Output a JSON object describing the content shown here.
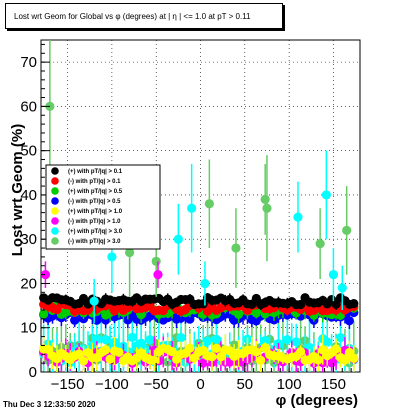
{
  "chart_data": {
    "type": "scatter",
    "title": "Lost wrt Geom for Global vs φ (degrees) at | η | <= 1.0 at pT > 0.11",
    "xlabel": "φ (degrees)",
    "ylabel": "Lost wrt Geom (%)",
    "xlim": [
      -180,
      180
    ],
    "ylim": [
      0,
      75
    ],
    "x_ticks": [
      -150,
      -100,
      -50,
      0,
      50,
      100,
      150
    ],
    "y_ticks": [
      0,
      10,
      20,
      30,
      40,
      50,
      60,
      70
    ],
    "grid": true,
    "legend_position": "middle-left",
    "series": [
      {
        "name": "(+) with pT/|q| > 0.1",
        "color": "#000000",
        "base": 16,
        "spread": 0.8,
        "err": 1.0
      },
      {
        "name": "(-) with pT/|q| > 0.1",
        "color": "#ff0000",
        "base": 14.5,
        "spread": 0.8,
        "err": 1.0
      },
      {
        "name": "(+) with pT/|q| > 0.5",
        "color": "#00cc00",
        "base": 14,
        "spread": 1.2,
        "err": 1.5
      },
      {
        "name": "(-) with pT/|q| > 0.5",
        "color": "#0000ff",
        "base": 12.5,
        "spread": 1.0,
        "err": 1.5
      },
      {
        "name": "(+) with pT/|q| > 1.0",
        "color": "#ffff00",
        "base": 4,
        "spread": 1.5,
        "err": 2.5
      },
      {
        "name": "(-) with pT/|q| > 1.0",
        "color": "#ff00ff",
        "base": 3.5,
        "spread": 1.5,
        "err": 2.5
      },
      {
        "name": "(+) with pT/|q| > 3.0",
        "color": "#00ffff",
        "base": 5,
        "spread": 3,
        "err": 5
      },
      {
        "name": "(-) with pT/|q| > 3.0",
        "color": "#66cc66",
        "base": 5,
        "spread": 3,
        "err": 6
      }
    ],
    "highlights": [
      {
        "series": 7,
        "x": -170,
        "y": 60,
        "err": 16
      },
      {
        "series": 6,
        "x": -10,
        "y": 37,
        "err": 10
      },
      {
        "series": 7,
        "x": 10,
        "y": 38,
        "err": 10
      },
      {
        "series": 7,
        "x": 75,
        "y": 37,
        "err": 12
      },
      {
        "series": 7,
        "x": 73,
        "y": 39,
        "err": 8
      },
      {
        "series": 6,
        "x": 110,
        "y": 35,
        "err": 8
      },
      {
        "series": 6,
        "x": 142,
        "y": 40,
        "err": 10
      },
      {
        "series": 7,
        "x": 165,
        "y": 32,
        "err": 10
      },
      {
        "series": 7,
        "x": 135,
        "y": 29,
        "err": 8
      },
      {
        "series": 7,
        "x": -80,
        "y": 27,
        "err": 10
      },
      {
        "series": 6,
        "x": -100,
        "y": 26,
        "err": 8
      },
      {
        "series": 7,
        "x": -50,
        "y": 25,
        "err": 8
      },
      {
        "series": 6,
        "x": -25,
        "y": 30,
        "err": 8
      },
      {
        "series": 7,
        "x": 40,
        "y": 28,
        "err": 9
      },
      {
        "series": 6,
        "x": 150,
        "y": 22,
        "err": 6
      },
      {
        "series": 5,
        "x": -175,
        "y": 22,
        "err": 3
      },
      {
        "series": 5,
        "x": -48,
        "y": 22,
        "err": 3
      },
      {
        "series": 6,
        "x": 160,
        "y": 19,
        "err": 5
      },
      {
        "series": 6,
        "x": -120,
        "y": 16,
        "err": 5
      },
      {
        "series": 6,
        "x": 5,
        "y": 20,
        "err": 5
      }
    ]
  },
  "footer": {
    "timestamp": "Thu Dec  3 12:33:50 2020"
  }
}
